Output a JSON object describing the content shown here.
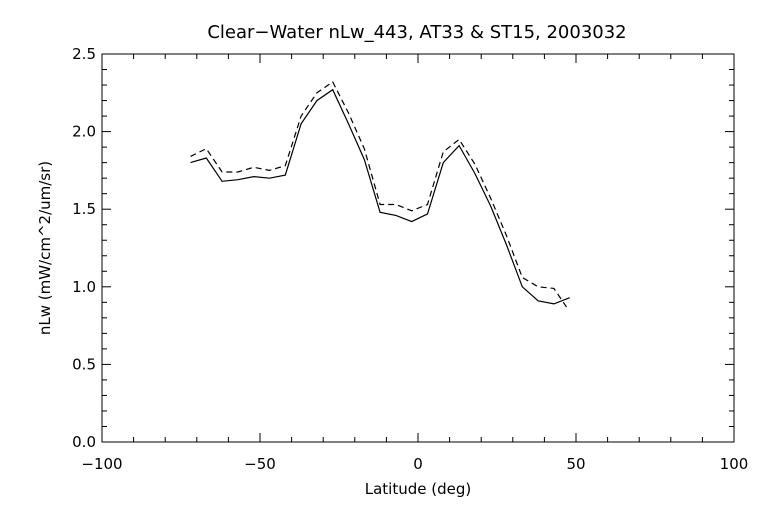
{
  "chart_data": {
    "type": "line",
    "title": "Clear−Water nLw_443, AT33 & ST15, 2003032",
    "xlabel": "Latitude (deg)",
    "ylabel": "nLw (mW/cm^2/um/sr)",
    "xlim": [
      -100,
      100
    ],
    "ylim": [
      0.0,
      2.5
    ],
    "x_ticks": [
      -100,
      -50,
      0,
      50,
      100
    ],
    "x_tick_labels": [
      "−100",
      "−50",
      "0",
      "50",
      "100"
    ],
    "y_ticks": [
      0.0,
      0.5,
      1.0,
      1.5,
      2.0,
      2.5
    ],
    "y_tick_labels": [
      "0.0",
      "0.5",
      "1.0",
      "1.5",
      "2.0",
      "2.5"
    ],
    "grid": false,
    "legend": false,
    "series": [
      {
        "style": "solid",
        "color": "#000000",
        "x": [
          -72,
          -67,
          -62,
          -57,
          -52,
          -47,
          -42,
          -37,
          -32,
          -27,
          -22,
          -17,
          -12,
          -7,
          -2,
          3,
          8,
          13,
          18,
          23,
          28,
          33,
          38,
          43,
          48
        ],
        "y": [
          1.8,
          1.83,
          1.68,
          1.69,
          1.71,
          1.7,
          1.72,
          2.05,
          2.2,
          2.27,
          2.05,
          1.82,
          1.48,
          1.46,
          1.42,
          1.47,
          1.8,
          1.91,
          1.73,
          1.52,
          1.27,
          1.0,
          0.91,
          0.89,
          0.93
        ]
      },
      {
        "style": "dashed",
        "color": "#000000",
        "x": [
          -72,
          -67,
          -62,
          -57,
          -52,
          -47,
          -42,
          -37,
          -32,
          -27,
          -22,
          -17,
          -12,
          -7,
          -2,
          3,
          8,
          13,
          18,
          23,
          28,
          33,
          38,
          43,
          47
        ],
        "y": [
          1.84,
          1.89,
          1.74,
          1.74,
          1.77,
          1.75,
          1.78,
          2.1,
          2.25,
          2.32,
          2.12,
          1.89,
          1.53,
          1.53,
          1.49,
          1.53,
          1.87,
          1.95,
          1.79,
          1.57,
          1.33,
          1.06,
          1.0,
          0.99,
          0.87
        ]
      }
    ]
  }
}
